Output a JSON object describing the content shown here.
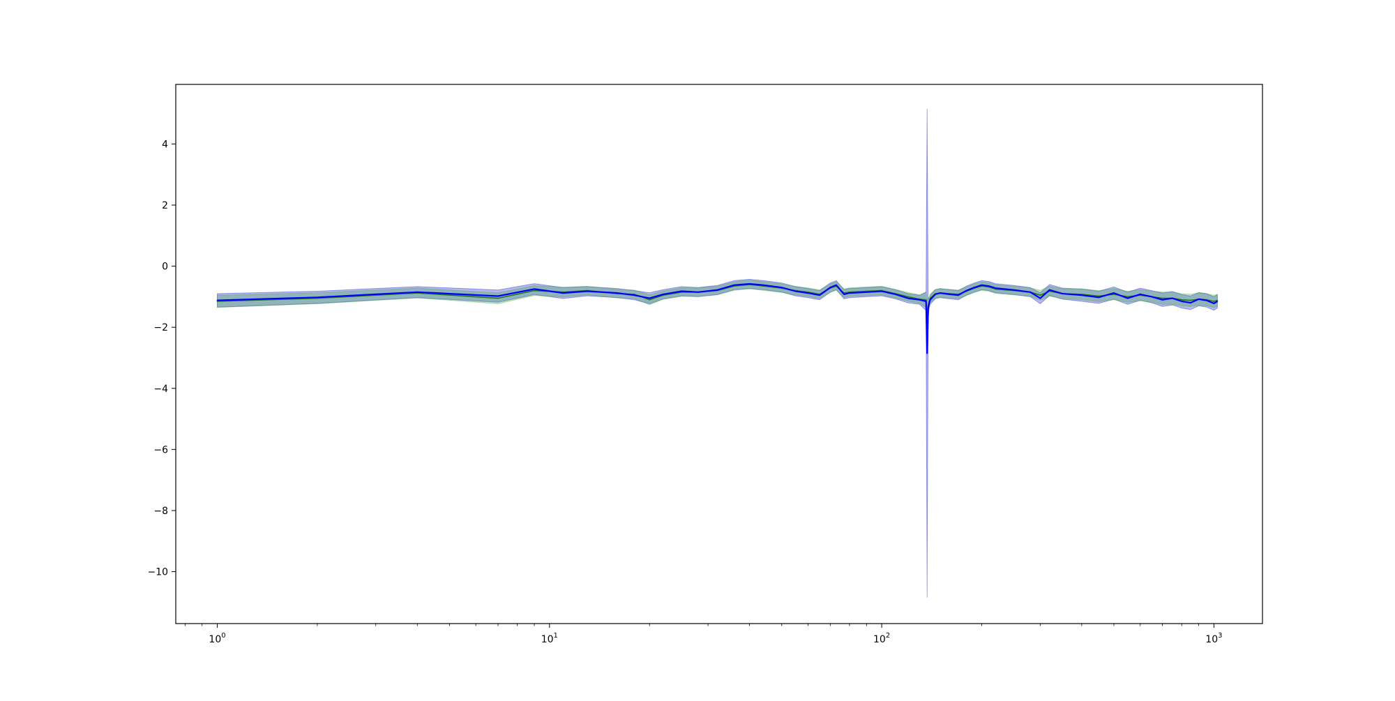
{
  "chart_data": {
    "type": "line",
    "title": "",
    "xlabel": "",
    "ylabel": "",
    "x_scale": "log",
    "xlim": [
      0.75,
      1400
    ],
    "ylim": [
      -11.7,
      5.95
    ],
    "grid": false,
    "legend": null,
    "x_ticks": [
      {
        "value": 1,
        "base": "10",
        "exp": "0"
      },
      {
        "value": 10,
        "base": "10",
        "exp": "1"
      },
      {
        "value": 100,
        "base": "10",
        "exp": "2"
      },
      {
        "value": 1000,
        "base": "10",
        "exp": "3"
      }
    ],
    "y_ticks": [
      {
        "value": 4,
        "label": "4"
      },
      {
        "value": 2,
        "label": "2"
      },
      {
        "value": 0,
        "label": "0"
      },
      {
        "value": -2,
        "label": "−2"
      },
      {
        "value": -4,
        "label": "−4"
      },
      {
        "value": -6,
        "label": "−6"
      },
      {
        "value": -8,
        "label": "−8"
      },
      {
        "value": -10,
        "label": "−10"
      }
    ],
    "series": [
      {
        "color": "#0000ff",
        "band_color": "#0000cc",
        "x": [
          1,
          2,
          4,
          7,
          9,
          11,
          13,
          16,
          18,
          20,
          22,
          25,
          28,
          32,
          36,
          40,
          44,
          50,
          55,
          60,
          65,
          70,
          73,
          77,
          80,
          90,
          100,
          110,
          120,
          130,
          136,
          137,
          138,
          139,
          140,
          145,
          150,
          160,
          170,
          180,
          190,
          200,
          210,
          220,
          250,
          280,
          300,
          320,
          350,
          400,
          450,
          500,
          550,
          600,
          650,
          700,
          750,
          800,
          850,
          900,
          950,
          1000,
          1024
        ],
        "y": [
          -1.12,
          -1.02,
          -0.85,
          -0.98,
          -0.75,
          -0.88,
          -0.82,
          -0.88,
          -0.95,
          -1.05,
          -0.92,
          -0.82,
          -0.85,
          -0.78,
          -0.62,
          -0.58,
          -0.62,
          -0.7,
          -0.82,
          -0.88,
          -0.95,
          -0.7,
          -0.62,
          -0.92,
          -0.88,
          -0.85,
          -0.82,
          -0.92,
          -1.05,
          -1.1,
          -1.15,
          -2.85,
          -1.4,
          -1.2,
          -1.1,
          -0.92,
          -0.88,
          -0.92,
          -0.95,
          -0.8,
          -0.7,
          -0.62,
          -0.65,
          -0.72,
          -0.78,
          -0.85,
          -1.05,
          -0.78,
          -0.9,
          -0.95,
          -1.02,
          -0.88,
          -1.05,
          -0.92,
          -1.0,
          -1.1,
          -1.05,
          -1.15,
          -1.2,
          -1.08,
          -1.12,
          -1.22,
          -1.15
        ],
        "spread": [
          0.22,
          0.2,
          0.18,
          0.2,
          0.18,
          0.18,
          0.15,
          0.15,
          0.15,
          0.18,
          0.15,
          0.15,
          0.15,
          0.15,
          0.15,
          0.15,
          0.15,
          0.15,
          0.15,
          0.15,
          0.15,
          0.15,
          0.15,
          0.15,
          0.15,
          0.15,
          0.15,
          0.15,
          0.15,
          0.15,
          0.3,
          8.0,
          0.3,
          0.15,
          0.15,
          0.15,
          0.15,
          0.15,
          0.15,
          0.15,
          0.15,
          0.15,
          0.15,
          0.15,
          0.15,
          0.15,
          0.18,
          0.18,
          0.18,
          0.2,
          0.2,
          0.2,
          0.2,
          0.2,
          0.2,
          0.22,
          0.22,
          0.22,
          0.22,
          0.22,
          0.22,
          0.22,
          0.22
        ]
      },
      {
        "color": "#1a7a1a",
        "band_color": "#33aa33",
        "x": [
          1,
          2,
          4,
          7,
          9,
          11,
          13,
          16,
          18,
          20,
          22,
          25,
          28,
          32,
          36,
          40,
          44,
          50,
          55,
          60,
          65,
          70,
          73,
          77,
          80,
          90,
          100,
          110,
          120,
          130,
          136,
          137,
          138,
          139,
          140,
          145,
          150,
          160,
          170,
          180,
          190,
          200,
          210,
          220,
          250,
          280,
          300,
          320,
          350,
          400,
          450,
          500,
          550,
          600,
          650,
          700,
          750,
          800,
          850,
          900,
          950,
          1000,
          1024
        ],
        "y": [
          -1.15,
          -1.05,
          -0.88,
          -1.05,
          -0.8,
          -0.85,
          -0.8,
          -0.9,
          -0.92,
          -1.1,
          -0.95,
          -0.85,
          -0.85,
          -0.8,
          -0.65,
          -0.6,
          -0.65,
          -0.72,
          -0.8,
          -0.85,
          -0.92,
          -0.72,
          -0.65,
          -0.88,
          -0.85,
          -0.82,
          -0.8,
          -0.9,
          -1.0,
          -1.08,
          -1.1,
          -1.6,
          -1.3,
          -1.15,
          -1.05,
          -0.9,
          -0.88,
          -0.9,
          -0.92,
          -0.82,
          -0.72,
          -0.65,
          -0.68,
          -0.75,
          -0.8,
          -0.85,
          -0.95,
          -0.82,
          -0.9,
          -0.92,
          -0.98,
          -0.92,
          -1.0,
          -0.95,
          -1.0,
          -1.05,
          -1.05,
          -1.1,
          -1.12,
          -1.08,
          -1.1,
          -1.15,
          -1.12
        ],
        "spread": [
          0.2,
          0.18,
          0.16,
          0.18,
          0.16,
          0.16,
          0.14,
          0.14,
          0.14,
          0.16,
          0.14,
          0.14,
          0.14,
          0.14,
          0.14,
          0.14,
          0.14,
          0.14,
          0.14,
          0.14,
          0.14,
          0.14,
          0.14,
          0.14,
          0.14,
          0.14,
          0.14,
          0.14,
          0.14,
          0.14,
          0.25,
          0.5,
          0.25,
          0.14,
          0.14,
          0.14,
          0.14,
          0.14,
          0.14,
          0.14,
          0.14,
          0.14,
          0.14,
          0.14,
          0.14,
          0.14,
          0.16,
          0.16,
          0.16,
          0.18,
          0.18,
          0.18,
          0.18,
          0.18,
          0.18,
          0.2,
          0.2,
          0.2,
          0.2,
          0.2,
          0.2,
          0.2,
          0.2
        ]
      }
    ]
  }
}
